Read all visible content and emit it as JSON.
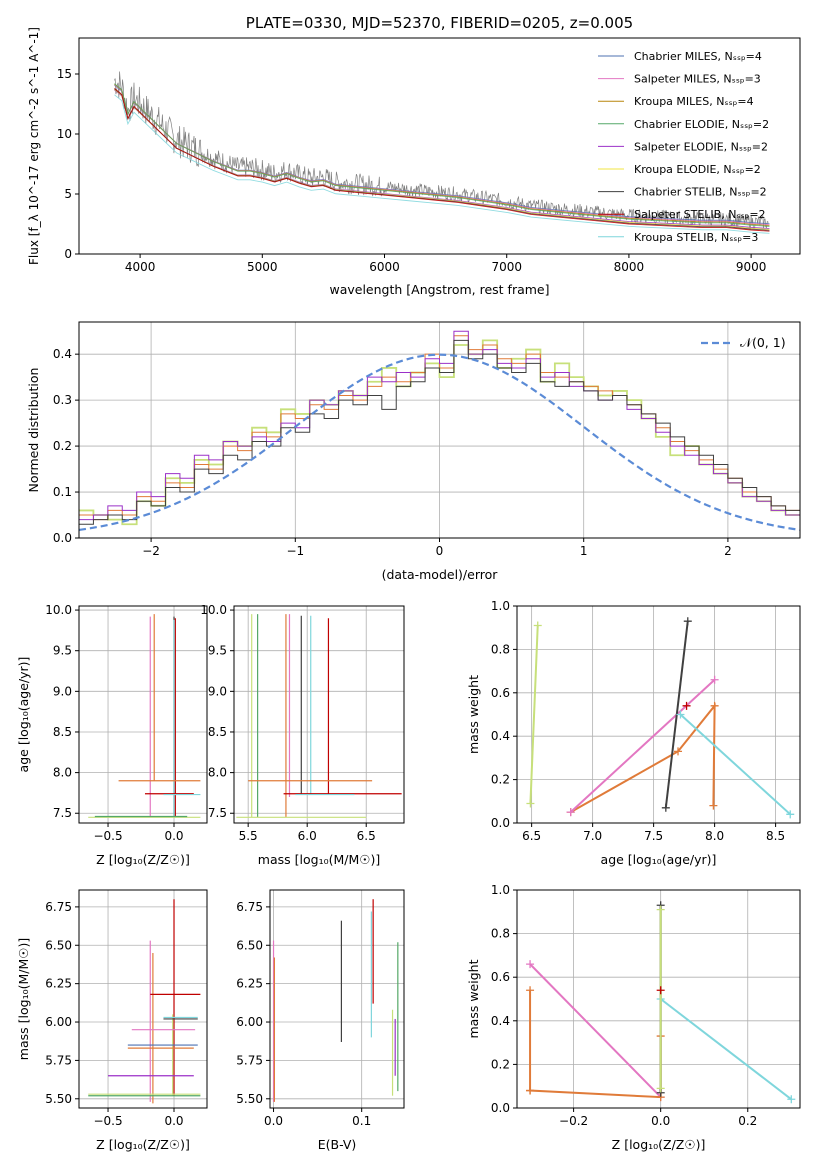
{
  "chart_data": [
    {
      "id": "spectrum",
      "type": "line",
      "title": "PLATE=0330, MJD=52370, FIBERID=0205, z=0.005",
      "xlabel": "wavelength [Angstrom, rest frame]",
      "ylabel": "Flux [f_λ 10^-17 erg cm^-2 s^-1 A^-1]",
      "xlim": [
        3500,
        9400
      ],
      "ylim": [
        0,
        18
      ],
      "xticks": [
        4000,
        5000,
        6000,
        7000,
        8000,
        9000
      ],
      "yticks": [
        0,
        5,
        10,
        15
      ],
      "grid": false,
      "legend_position": "top-right",
      "observed": {
        "color": "#808080",
        "x": [
          3790,
          3850,
          3900,
          3950,
          4000,
          4100,
          4200,
          4300,
          4400,
          4500,
          4600,
          4700,
          4800,
          4900,
          5000,
          5100,
          5200,
          5300,
          5400,
          5500,
          5600,
          5800,
          6000,
          6200,
          6400,
          6600,
          6800,
          7000,
          7200,
          7400,
          7600,
          7800,
          8000,
          8200,
          8400,
          8600,
          8800,
          9000,
          9150
        ],
        "y": [
          14.5,
          14.0,
          12.0,
          13.0,
          12.5,
          11.5,
          10.5,
          9.5,
          9.0,
          8.5,
          8.0,
          7.6,
          7.2,
          7.2,
          7.0,
          6.7,
          7.0,
          6.6,
          6.3,
          6.4,
          6.0,
          5.8,
          5.6,
          5.4,
          5.2,
          5.0,
          4.7,
          4.4,
          4.0,
          3.8,
          3.6,
          3.4,
          3.2,
          3.1,
          3.0,
          2.9,
          2.9,
          2.7,
          2.6
        ]
      },
      "series": [
        {
          "name": "Chabrier MILES, N_SSP=4",
          "color": "#4c72b0"
        },
        {
          "name": "Salpeter MILES, N_SSP=3",
          "color": "#e377c2"
        },
        {
          "name": "Kroupa MILES, N_SSP=4",
          "color": "#b8860b"
        },
        {
          "name": "Chabrier ELODIE, N_SSP=2",
          "color": "#55a868"
        },
        {
          "name": "Salpeter ELODIE, N_SSP=2",
          "color": "#9b30c8"
        },
        {
          "name": "Kroupa ELODIE, N_SSP=2",
          "color": "#f0e442"
        },
        {
          "name": "Chabrier STELIB, N_SSP=2",
          "color": "#404040"
        },
        {
          "name": "Salpeter STELIB, N_SSP=2",
          "color": "#c00000"
        },
        {
          "name": "Kroupa STELIB, N_SSP=3",
          "color": "#7fd6dc"
        }
      ]
    },
    {
      "id": "residuals",
      "type": "line",
      "xlabel": "(data-model)/error",
      "ylabel": "Normed distribution",
      "xlim": [
        -2.5,
        2.5
      ],
      "ylim": [
        0,
        0.47
      ],
      "xticks": [
        -2,
        -1,
        0,
        1,
        2
      ],
      "yticks": [
        0.0,
        0.1,
        0.2,
        0.3,
        0.4
      ],
      "grid": true,
      "legend_position": "top-right",
      "gaussian": {
        "name": "𝒩(0, 1)",
        "color": "#5b8bd6",
        "mean": 0,
        "sigma": 1
      },
      "bin_width": 0.1,
      "hist_start": -2.5,
      "histograms": [
        {
          "color": "#c7e07a",
          "values": [
            0.06,
            0.05,
            0.04,
            0.03,
            0.08,
            0.07,
            0.13,
            0.12,
            0.17,
            0.16,
            0.21,
            0.2,
            0.24,
            0.23,
            0.28,
            0.27,
            0.3,
            0.29,
            0.32,
            0.31,
            0.34,
            0.37,
            0.33,
            0.36,
            0.38,
            0.35,
            0.42,
            0.4,
            0.43,
            0.37,
            0.39,
            0.41,
            0.34,
            0.38,
            0.35,
            0.33,
            0.31,
            0.32,
            0.3,
            0.26,
            0.22,
            0.18,
            0.2,
            0.16,
            0.14,
            0.12,
            0.09,
            0.08,
            0.06,
            0.05
          ]
        },
        {
          "color": "#e07b39",
          "values": [
            0.05,
            0.04,
            0.06,
            0.05,
            0.09,
            0.08,
            0.12,
            0.11,
            0.16,
            0.15,
            0.2,
            0.19,
            0.23,
            0.22,
            0.27,
            0.26,
            0.29,
            0.28,
            0.31,
            0.3,
            0.33,
            0.35,
            0.34,
            0.36,
            0.4,
            0.37,
            0.44,
            0.41,
            0.42,
            0.39,
            0.38,
            0.4,
            0.36,
            0.35,
            0.34,
            0.33,
            0.32,
            0.31,
            0.29,
            0.27,
            0.24,
            0.21,
            0.19,
            0.17,
            0.15,
            0.13,
            0.1,
            0.09,
            0.07,
            0.06
          ]
        },
        {
          "color": "#9b30c8",
          "values": [
            0.04,
            0.05,
            0.07,
            0.06,
            0.1,
            0.09,
            0.14,
            0.13,
            0.18,
            0.17,
            0.21,
            0.2,
            0.22,
            0.21,
            0.25,
            0.24,
            0.3,
            0.29,
            0.32,
            0.31,
            0.35,
            0.34,
            0.36,
            0.35,
            0.39,
            0.38,
            0.45,
            0.4,
            0.41,
            0.38,
            0.37,
            0.39,
            0.35,
            0.36,
            0.33,
            0.32,
            0.3,
            0.31,
            0.28,
            0.26,
            0.23,
            0.2,
            0.18,
            0.16,
            0.14,
            0.12,
            0.09,
            0.08,
            0.06,
            0.05
          ]
        },
        {
          "color": "#404040",
          "values": [
            0.03,
            0.04,
            0.05,
            0.04,
            0.08,
            0.07,
            0.11,
            0.1,
            0.15,
            0.14,
            0.18,
            0.17,
            0.21,
            0.2,
            0.24,
            0.23,
            0.27,
            0.26,
            0.3,
            0.29,
            0.31,
            0.28,
            0.33,
            0.34,
            0.37,
            0.36,
            0.43,
            0.39,
            0.4,
            0.37,
            0.36,
            0.38,
            0.34,
            0.33,
            0.34,
            0.32,
            0.3,
            0.31,
            0.29,
            0.27,
            0.25,
            0.22,
            0.2,
            0.18,
            0.16,
            0.13,
            0.11,
            0.09,
            0.07,
            0.06
          ]
        }
      ]
    },
    {
      "id": "age_vs_Z",
      "type": "scatter",
      "xlabel": "Z [log10(Z/Z⊙)]",
      "ylabel": "age [log10(age/yr)]",
      "xlim": [
        -0.72,
        0.25
      ],
      "ylim": [
        7.38,
        10.05
      ],
      "xticks": [
        -0.5,
        0.0
      ],
      "yticks": [
        7.5,
        8.0,
        8.5,
        9.0,
        9.5,
        10.0
      ],
      "grid": true,
      "vertical_bars": [
        {
          "x": -0.18,
          "y0": 7.45,
          "y1": 9.92,
          "color": "#e377c2"
        },
        {
          "x": -0.15,
          "y0": 7.9,
          "y1": 9.95,
          "color": "#e07b39"
        },
        {
          "x": 0.0,
          "y0": 7.45,
          "y1": 9.92,
          "color": "#404040"
        },
        {
          "x": 0.01,
          "y0": 7.45,
          "y1": 9.9,
          "color": "#c00000"
        },
        {
          "x": 0.0,
          "y0": 7.45,
          "y1": 9.88,
          "color": "#7fd6dc"
        }
      ],
      "horizontal_bars": [
        {
          "y": 7.9,
          "x0": -0.42,
          "x1": 0.2,
          "color": "#e07b39"
        },
        {
          "y": 7.74,
          "x0": -0.22,
          "x1": 0.15,
          "color": "#c00000"
        },
        {
          "y": 7.73,
          "x0": -0.08,
          "x1": 0.2,
          "color": "#7fd6dc"
        },
        {
          "y": 7.45,
          "x0": -0.65,
          "x1": 0.2,
          "color": "#c7e07a"
        },
        {
          "y": 7.46,
          "x0": -0.6,
          "x1": 0.1,
          "color": "#55a868"
        }
      ]
    },
    {
      "id": "age_vs_mass",
      "type": "scatter",
      "xlabel": "mass [log10(M/M⊙)]",
      "ylabel": "",
      "xlim": [
        5.38,
        6.82
      ],
      "ylim": [
        7.38,
        10.05
      ],
      "xticks": [
        5.5,
        6.0,
        6.5
      ],
      "yticks": [
        7.5,
        8.0,
        8.5,
        9.0,
        9.5,
        10.0
      ],
      "grid": true,
      "vertical_bars": [
        {
          "x": 5.53,
          "y0": 7.45,
          "y1": 9.95,
          "color": "#c7e07a"
        },
        {
          "x": 5.58,
          "y0": 7.45,
          "y1": 9.95,
          "color": "#55a868"
        },
        {
          "x": 5.82,
          "y0": 7.45,
          "y1": 9.95,
          "color": "#e07b39"
        },
        {
          "x": 5.85,
          "y0": 7.7,
          "y1": 9.95,
          "color": "#e377c2"
        },
        {
          "x": 5.95,
          "y0": 7.74,
          "y1": 9.93,
          "color": "#404040"
        },
        {
          "x": 6.03,
          "y0": 7.73,
          "y1": 9.93,
          "color": "#7fd6dc"
        },
        {
          "x": 6.18,
          "y0": 7.74,
          "y1": 9.9,
          "color": "#c00000"
        }
      ],
      "horizontal_bars": [
        {
          "y": 7.9,
          "x0": 5.5,
          "x1": 6.55,
          "color": "#e07b39"
        },
        {
          "y": 7.74,
          "x0": 5.8,
          "x1": 6.8,
          "color": "#c00000"
        },
        {
          "y": 7.73,
          "x0": 5.9,
          "x1": 6.4,
          "color": "#7fd6dc"
        },
        {
          "y": 7.45,
          "x0": 5.4,
          "x1": 6.5,
          "color": "#c7e07a"
        }
      ]
    },
    {
      "id": "weight_vs_age",
      "type": "line",
      "xlabel": "age [log10(age/yr)]",
      "ylabel": "mass weight",
      "xlim": [
        6.38,
        8.7
      ],
      "ylim": [
        0.0,
        1.0
      ],
      "xticks": [
        6.5,
        7.0,
        7.5,
        8.0,
        8.5
      ],
      "yticks": [
        0.0,
        0.2,
        0.4,
        0.6,
        0.8,
        1.0
      ],
      "grid": true,
      "lines": [
        {
          "color": "#c7e07a",
          "x": [
            6.49,
            6.55
          ],
          "y": [
            0.09,
            0.91
          ]
        },
        {
          "color": "#e07b39",
          "x": [
            6.82,
            7.7,
            8.0,
            7.99
          ],
          "y": [
            0.05,
            0.33,
            0.54,
            0.08
          ]
        },
        {
          "color": "#e377c2",
          "x": [
            6.82,
            8.0
          ],
          "y": [
            0.05,
            0.66
          ]
        },
        {
          "color": "#404040",
          "x": [
            7.6,
            7.78
          ],
          "y": [
            0.07,
            0.93
          ]
        },
        {
          "color": "#7fd6dc",
          "x": [
            7.72,
            8.62
          ],
          "y": [
            0.5,
            0.04
          ]
        },
        {
          "color": "#c00000",
          "x": [
            7.77
          ],
          "y": [
            0.54
          ]
        }
      ]
    },
    {
      "id": "mass_vs_Z",
      "type": "scatter",
      "xlabel": "Z [log10(Z/Z⊙)]",
      "ylabel": "mass [log10(M/M⊙)]",
      "xlim": [
        -0.72,
        0.25
      ],
      "ylim": [
        5.44,
        6.86
      ],
      "xticks": [
        -0.5,
        0.0
      ],
      "yticks": [
        5.5,
        5.75,
        6.0,
        6.25,
        6.5,
        6.75
      ],
      "grid": true,
      "vertical_bars": [
        {
          "x": -0.18,
          "y0": 5.48,
          "y1": 6.53,
          "color": "#e377c2"
        },
        {
          "x": -0.16,
          "y0": 5.47,
          "y1": 6.45,
          "color": "#e07b39"
        },
        {
          "x": 0.0,
          "y0": 5.52,
          "y1": 6.8,
          "color": "#c00000"
        },
        {
          "x": -0.01,
          "y0": 5.52,
          "y1": 6.05,
          "color": "#c7e07a"
        }
      ],
      "horizontal_bars": [
        {
          "y": 6.18,
          "x0": -0.18,
          "x1": 0.2,
          "color": "#c00000"
        },
        {
          "y": 6.03,
          "x0": -0.08,
          "x1": 0.18,
          "color": "#7fd6dc"
        },
        {
          "y": 6.02,
          "x0": -0.08,
          "x1": 0.18,
          "color": "#404040"
        },
        {
          "y": 5.95,
          "x0": -0.32,
          "x1": 0.16,
          "color": "#e377c2"
        },
        {
          "y": 5.85,
          "x0": -0.35,
          "x1": 0.18,
          "color": "#4c72b0"
        },
        {
          "y": 5.83,
          "x0": -0.35,
          "x1": 0.15,
          "color": "#e07b39"
        },
        {
          "y": 5.65,
          "x0": -0.5,
          "x1": 0.15,
          "color": "#9b30c8"
        },
        {
          "y": 5.52,
          "x0": -0.65,
          "x1": 0.2,
          "color": "#55a868"
        },
        {
          "y": 5.53,
          "x0": -0.65,
          "x1": 0.2,
          "color": "#c7e07a"
        }
      ]
    },
    {
      "id": "mass_vs_EBV",
      "type": "scatter",
      "xlabel": "E(B-V)",
      "ylabel": "",
      "xlim": [
        -0.004,
        0.148
      ],
      "ylim": [
        5.44,
        6.86
      ],
      "xticks": [
        0.0,
        0.1
      ],
      "yticks": [
        5.5,
        5.75,
        6.0,
        6.25,
        6.5,
        6.75
      ],
      "grid": true,
      "vertical_bars": [
        {
          "x": 0.0,
          "y0": 5.48,
          "y1": 6.53,
          "color": "#e377c2"
        },
        {
          "x": 0.001,
          "y0": 5.48,
          "y1": 6.42,
          "color": "#e07b39"
        },
        {
          "x": 0.077,
          "y0": 5.87,
          "y1": 6.66,
          "color": "#404040"
        },
        {
          "x": 0.111,
          "y0": 5.9,
          "y1": 6.72,
          "color": "#7fd6dc"
        },
        {
          "x": 0.113,
          "y0": 6.12,
          "y1": 6.8,
          "color": "#c00000"
        },
        {
          "x": 0.135,
          "y0": 5.52,
          "y1": 6.08,
          "color": "#c7e07a"
        },
        {
          "x": 0.138,
          "y0": 5.65,
          "y1": 6.02,
          "color": "#9b30c8"
        },
        {
          "x": 0.141,
          "y0": 5.55,
          "y1": 6.52,
          "color": "#55a868"
        }
      ],
      "horizontal_bars": []
    },
    {
      "id": "weight_vs_Z",
      "type": "line",
      "xlabel": "Z [log10(Z/Z⊙)]",
      "ylabel": "mass weight",
      "xlim": [
        -0.33,
        0.32
      ],
      "ylim": [
        0.0,
        1.0
      ],
      "xticks": [
        -0.2,
        0.0,
        0.2
      ],
      "yticks": [
        0.0,
        0.2,
        0.4,
        0.6,
        0.8,
        1.0
      ],
      "grid": true,
      "lines": [
        {
          "color": "#e377c2",
          "x": [
            -0.3,
            0.0
          ],
          "y": [
            0.66,
            0.05
          ]
        },
        {
          "color": "#e07b39",
          "x": [
            -0.3,
            -0.3,
            -0.3,
            0.0,
            0.0
          ],
          "y": [
            0.54,
            0.08,
            0.08,
            0.05,
            0.33
          ]
        },
        {
          "color": "#404040",
          "x": [
            0.0,
            0.0
          ],
          "y": [
            0.07,
            0.93
          ]
        },
        {
          "color": "#7fd6dc",
          "x": [
            0.0,
            0.3
          ],
          "y": [
            0.5,
            0.04
          ]
        },
        {
          "color": "#c7e07a",
          "x": [
            0.0,
            0.0
          ],
          "y": [
            0.09,
            0.91
          ]
        },
        {
          "color": "#c00000",
          "x": [
            0.0
          ],
          "y": [
            0.54
          ]
        }
      ]
    }
  ]
}
